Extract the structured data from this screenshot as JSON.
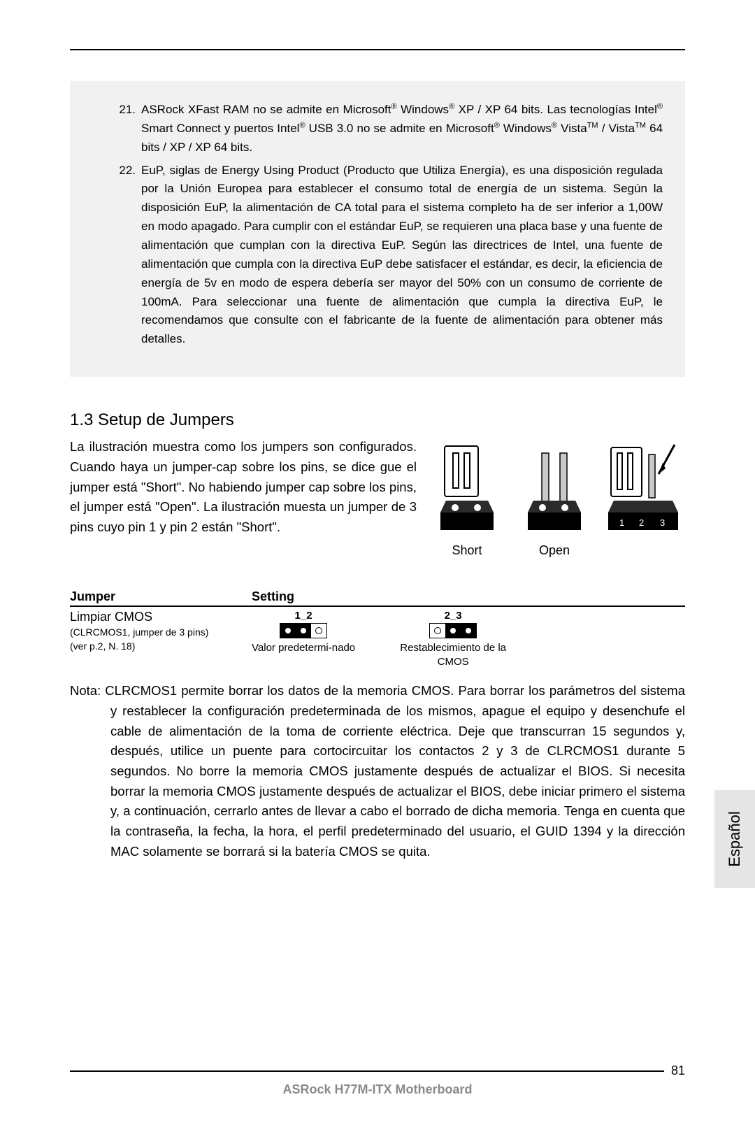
{
  "notes": {
    "items": [
      {
        "num": "21.",
        "html": "ASRock XFast RAM no se admite en Microsoft<sup>®</sup> Windows<sup>®</sup> XP / XP 64 bits. Las tecnologías Intel<sup>®</sup> Smart Connect y puertos Intel<sup>®</sup> USB 3.0 no se admite en Microsoft<sup>®</sup> Windows<sup>®</sup> Vista<sup>TM</sup> / Vista<sup>TM</sup> 64 bits / XP / XP 64 bits."
      },
      {
        "num": "22.",
        "html": "EuP, siglas de Energy Using Product (Producto que Utiliza Energía), es una disposición regulada por la Unión Europea para establecer el consumo total de energía de un sistema. Según la disposición EuP, la alimentación de CA total para el sistema completo ha de ser inferior a 1,00W en modo apagado. Para cumplir con el estándar EuP, se requieren una placa base y una fuente de alimentación que cumplan con la directiva EuP. Según las directrices de Intel, una fuente de alimentación que cumpla con la directiva EuP debe satisfacer el estándar, es decir, la eficiencia de energía de 5v en modo de espera debería ser mayor del 50% con un consumo de corriente de 100mA. Para seleccionar una fuente de alimentación que cumpla la directiva EuP, le recomendamos que consulte con el fabricante de la fuente de alimentación para obtener más detalles."
      }
    ]
  },
  "section": {
    "title": "1.3  Setup de Jumpers",
    "intro": "La ilustración muestra como los jumpers son configurados. Cuando haya un jumper-cap sobre los pins, se dice gue el jumper está \"Short\". No habiendo jumper cap sobre los pins, el jumper está \"Open\". La ilustración muesta un jumper de 3 pins cuyo pin 1 y pin 2 están \"Short\"."
  },
  "figure": {
    "label_short": "Short",
    "label_open": "Open",
    "pin_labels": [
      "1",
      "2",
      "3"
    ]
  },
  "table": {
    "headers": {
      "col1": "Jumper",
      "col2": "Setting"
    },
    "jumper": {
      "name": "Limpiar CMOS",
      "sub1": "(CLRCMOS1, jumper de 3 pins)",
      "sub2": "(ver  p.2,  N.  18)"
    },
    "settings": [
      {
        "pins_label": "1_2",
        "pattern": [
          "filled",
          "filled",
          "open"
        ],
        "caption": "Valor predetermi-nado"
      },
      {
        "pins_label": "2_3",
        "pattern": [
          "open",
          "filled",
          "filled"
        ],
        "caption": "Restablecimiento de la CMOS"
      }
    ]
  },
  "nota": {
    "text": "Nota: CLRCMOS1 permite borrar los datos de la memoria CMOS. Para borrar los parámetros del sistema y restablecer la configuración predeterminada de los mismos, apague el equipo y desenchufe el cable de alimentación de la toma de corriente eléctrica. Deje que transcurran 15 segundos y, después, utilice un puente para cortocircuitar los contactos 2 y 3 de CLRCMOS1 durante 5 segundos. No borre la memoria CMOS justamente después de actualizar el BIOS. Si necesita borrar la memoria CMOS justamente después de actualizar el BIOS, debe iniciar primero el sistema y, a continuación, cerrarlo antes de llevar a cabo el borrado de dicha memoria. Tenga en cuenta que la contraseña, la fecha, la hora, el perfil predeterminado del usuario, el GUID 1394 y la dirección MAC solamente se borrará si la batería CMOS se quita."
  },
  "side_tab": "Español",
  "footer": {
    "page": "81",
    "title": "ASRock  H77M-ITX  Motherboard"
  },
  "colors": {
    "notes_bg": "#f1f1f1",
    "text": "#000000",
    "footer_title": "#8a8a8a",
    "tab_bg": "#e6e6e6"
  }
}
